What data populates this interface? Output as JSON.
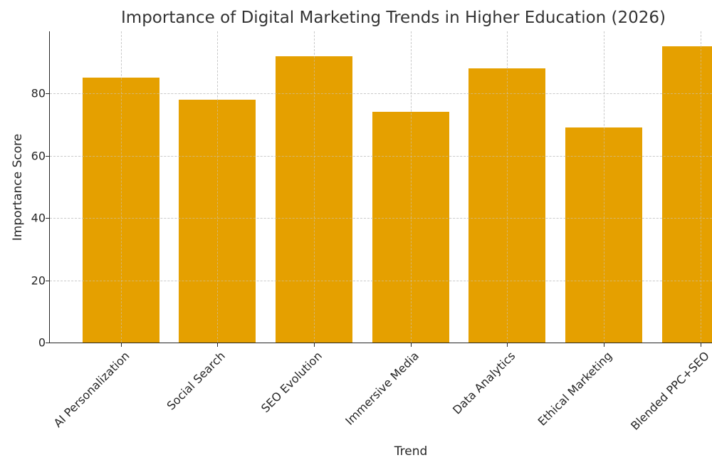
{
  "chart_data": {
    "type": "bar",
    "title": "Importance of Digital Marketing Trends in Higher Education (2026)",
    "xlabel": "Trend",
    "ylabel": "Importance Score",
    "categories": [
      "AI Personalization",
      "Social Search",
      "SEO Evolution",
      "Immersive Media",
      "Data Analytics",
      "Ethical Marketing",
      "Blended PPC+SEO"
    ],
    "values": [
      85,
      78,
      92,
      74,
      88,
      69,
      95
    ],
    "ylim": [
      0,
      100
    ],
    "yticks": [
      0,
      20,
      40,
      60,
      80
    ],
    "grid": true,
    "bar_color": "#E5A000",
    "legend": null
  }
}
